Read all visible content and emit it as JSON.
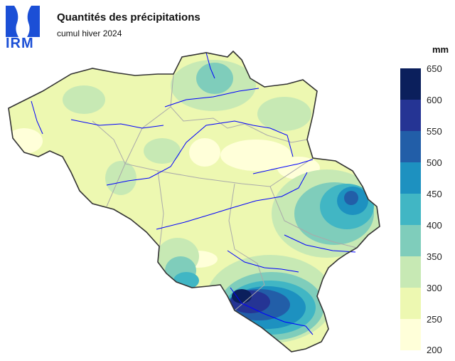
{
  "header": {
    "logo_text": "IRM",
    "title": "Quantités des précipitations",
    "subtitle": "cumul hiver 2024"
  },
  "legend": {
    "unit": "mm",
    "labels": [
      "650",
      "600",
      "550",
      "500",
      "450",
      "400",
      "350",
      "300",
      "250",
      "200"
    ],
    "colors": [
      "#0b1f5c",
      "#253494",
      "#225ea8",
      "#1d91c0",
      "#41b6c4",
      "#7fcdbb",
      "#c7e9b4",
      "#edf8b1",
      "#ffffd9"
    ]
  },
  "map": {
    "region": "Belgium",
    "border_color": "#333333",
    "river_color": "#0000ff",
    "province_border_color": "#aaaaaa"
  }
}
